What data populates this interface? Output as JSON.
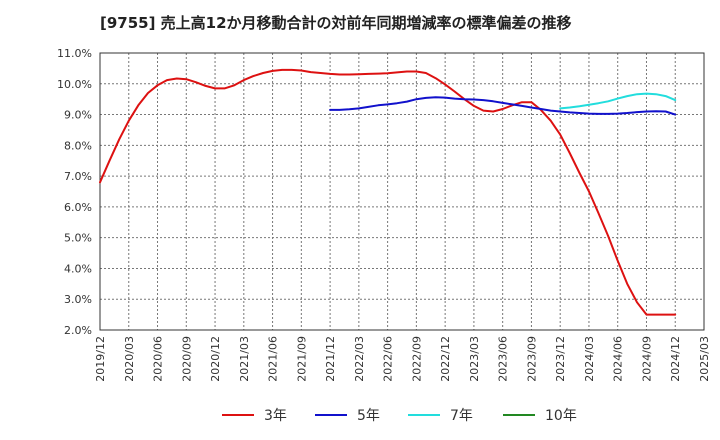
{
  "chart_data": {
    "type": "line",
    "title": "[9755]  売上高12か月移動合計の対前年同期増減率の標準偏差の推移",
    "xlabel": "",
    "ylabel": "",
    "x_ticks": [
      "2019/12",
      "2020/03",
      "2020/06",
      "2020/09",
      "2020/12",
      "2021/03",
      "2021/06",
      "2021/09",
      "2021/12",
      "2022/03",
      "2022/06",
      "2022/09",
      "2022/12",
      "2023/03",
      "2023/06",
      "2023/09",
      "2023/12",
      "2024/03",
      "2024/06",
      "2024/09",
      "2024/12",
      "2025/03"
    ],
    "y_ticks": [
      "2.0%",
      "3.0%",
      "4.0%",
      "5.0%",
      "6.0%",
      "7.0%",
      "8.0%",
      "9.0%",
      "10.0%",
      "11.0%"
    ],
    "ylim": [
      2.0,
      11.0
    ],
    "xlim": [
      0,
      21
    ],
    "series": [
      {
        "name": "3年",
        "color": "#dd1111",
        "x": [
          0,
          0.33,
          0.67,
          1,
          1.33,
          1.67,
          2,
          2.33,
          2.67,
          3,
          3.33,
          3.67,
          4,
          4.33,
          4.67,
          5,
          5.33,
          5.67,
          6,
          6.33,
          6.67,
          7,
          7.33,
          7.67,
          8,
          8.33,
          8.67,
          9,
          9.33,
          9.67,
          10,
          10.33,
          10.67,
          11,
          11.33,
          11.67,
          12,
          12.33,
          12.67,
          13,
          13.33,
          13.67,
          14,
          14.33,
          14.67,
          15,
          15.33,
          15.67,
          16,
          16.33,
          16.67,
          17,
          17.33,
          17.67,
          18,
          18.33,
          18.67,
          19,
          19.33,
          19.67,
          20
        ],
        "values": [
          6.8,
          7.5,
          8.2,
          8.8,
          9.3,
          9.7,
          9.95,
          10.12,
          10.17,
          10.15,
          10.05,
          9.93,
          9.85,
          9.85,
          9.95,
          10.12,
          10.25,
          10.35,
          10.42,
          10.45,
          10.45,
          10.43,
          10.38,
          10.35,
          10.32,
          10.3,
          10.3,
          10.31,
          10.32,
          10.33,
          10.34,
          10.37,
          10.4,
          10.4,
          10.35,
          10.18,
          9.98,
          9.75,
          9.5,
          9.28,
          9.13,
          9.1,
          9.18,
          9.3,
          9.4,
          9.4,
          9.15,
          8.8,
          8.35,
          7.75,
          7.1,
          6.5,
          5.8,
          5.05,
          4.25,
          3.5,
          2.9,
          2.5,
          2.5,
          2.5,
          2.5
        ]
      },
      {
        "name": "5年",
        "color": "#1111cc",
        "x": [
          8,
          8.33,
          8.67,
          9,
          9.33,
          9.67,
          10,
          10.33,
          10.67,
          11,
          11.33,
          11.67,
          12,
          12.33,
          12.67,
          13,
          13.33,
          13.67,
          14,
          14.33,
          14.67,
          15,
          15.33,
          15.67,
          16,
          16.33,
          16.67,
          17,
          17.33,
          17.67,
          18,
          18.33,
          18.67,
          19,
          19.33,
          19.67,
          20
        ],
        "values": [
          9.15,
          9.15,
          9.17,
          9.2,
          9.25,
          9.3,
          9.33,
          9.37,
          9.42,
          9.5,
          9.54,
          9.56,
          9.55,
          9.52,
          9.5,
          9.49,
          9.47,
          9.43,
          9.38,
          9.33,
          9.28,
          9.23,
          9.18,
          9.13,
          9.1,
          9.07,
          9.05,
          9.03,
          9.02,
          9.02,
          9.03,
          9.05,
          9.08,
          9.1,
          9.11,
          9.1,
          9.0
        ]
      },
      {
        "name": "7年",
        "color": "#22dddd",
        "x": [
          16,
          16.33,
          16.67,
          17,
          17.33,
          17.67,
          18,
          18.33,
          18.67,
          19,
          19.33,
          19.67,
          20
        ],
        "values": [
          9.2,
          9.23,
          9.27,
          9.32,
          9.37,
          9.43,
          9.52,
          9.6,
          9.66,
          9.68,
          9.66,
          9.6,
          9.47
        ]
      },
      {
        "name": "10年",
        "color": "#228822",
        "x": [],
        "values": []
      }
    ],
    "legend_position": "bottom",
    "grid": true
  }
}
